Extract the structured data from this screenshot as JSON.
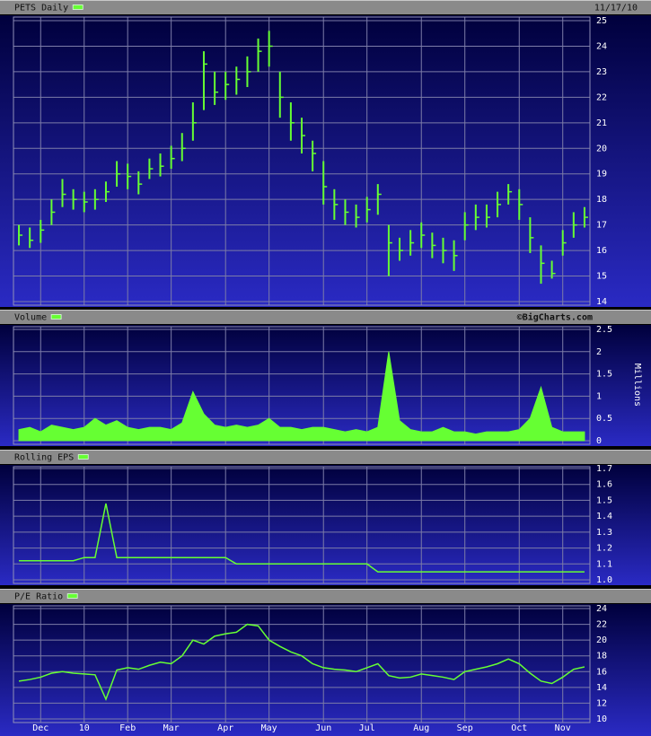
{
  "chart_data": [
    {
      "type": "ohlc",
      "title": "PETS Daily",
      "date": "11/17/10",
      "color": "#66ff33",
      "high": [
        17.0,
        16.9,
        17.2,
        18.0,
        18.8,
        18.4,
        18.3,
        18.4,
        18.7,
        19.5,
        19.4,
        19.1,
        19.6,
        19.8,
        20.1,
        20.6,
        21.8,
        23.8,
        23.0,
        23.0,
        23.2,
        23.6,
        24.3,
        24.6,
        23.0,
        21.8,
        21.2,
        20.3,
        19.5,
        18.4,
        18.0,
        17.8,
        18.1,
        18.6,
        17.0,
        16.5,
        16.8,
        17.1,
        16.7,
        16.5,
        16.4,
        17.5,
        17.8,
        17.8,
        18.3,
        18.6,
        18.4,
        17.3,
        16.2,
        15.6,
        16.8,
        17.5,
        17.7
      ],
      "low": [
        16.2,
        16.1,
        16.3,
        17.0,
        17.7,
        17.6,
        17.5,
        17.6,
        17.9,
        18.5,
        18.4,
        18.2,
        18.8,
        18.9,
        19.2,
        19.5,
        20.3,
        21.5,
        21.7,
        21.9,
        22.1,
        22.4,
        23.0,
        23.2,
        21.2,
        20.3,
        19.8,
        19.1,
        17.8,
        17.2,
        17.0,
        16.9,
        17.1,
        17.4,
        15.0,
        15.6,
        15.8,
        16.1,
        15.7,
        15.5,
        15.2,
        16.4,
        16.8,
        16.9,
        17.3,
        17.8,
        17.2,
        15.9,
        14.7,
        14.9,
        15.8,
        16.5,
        16.9
      ],
      "close": [
        16.6,
        16.4,
        16.8,
        17.5,
        18.2,
        18.0,
        17.9,
        18.0,
        18.3,
        19.0,
        18.9,
        18.6,
        19.2,
        19.3,
        19.6,
        20.0,
        21.0,
        23.3,
        22.2,
        22.5,
        22.7,
        23.0,
        23.8,
        24.0,
        22.0,
        21.0,
        20.5,
        19.8,
        18.5,
        17.8,
        17.5,
        17.3,
        17.6,
        18.2,
        16.3,
        16.0,
        16.3,
        16.6,
        16.2,
        16.0,
        15.8,
        17.0,
        17.3,
        17.3,
        17.8,
        18.3,
        17.8,
        16.5,
        15.5,
        15.1,
        16.3,
        17.0,
        17.3
      ],
      "ylim": [
        14,
        25
      ],
      "yticks": [
        14,
        15,
        16,
        17,
        18,
        19,
        20,
        21,
        22,
        23,
        24,
        25
      ],
      "grid": true
    },
    {
      "type": "area",
      "title": "Volume",
      "credit": "©BigCharts.com",
      "ylabel": "Millions",
      "color": "#66ff33",
      "values": [
        0.25,
        0.3,
        0.2,
        0.35,
        0.3,
        0.25,
        0.3,
        0.5,
        0.35,
        0.45,
        0.3,
        0.25,
        0.3,
        0.3,
        0.25,
        0.4,
        1.1,
        0.6,
        0.35,
        0.3,
        0.35,
        0.3,
        0.35,
        0.5,
        0.3,
        0.3,
        0.25,
        0.3,
        0.3,
        0.25,
        0.2,
        0.25,
        0.2,
        0.3,
        2.0,
        0.45,
        0.25,
        0.2,
        0.2,
        0.3,
        0.2,
        0.2,
        0.15,
        0.2,
        0.2,
        0.2,
        0.25,
        0.5,
        1.2,
        0.3,
        0.2,
        0.2,
        0.2
      ],
      "ylim": [
        0,
        2.5
      ],
      "yticks": [
        0,
        0.5,
        1,
        1.5,
        2,
        2.5
      ],
      "grid": true
    },
    {
      "type": "line",
      "title": "Rolling EPS",
      "color": "#66ff33",
      "values": [
        1.12,
        1.12,
        1.12,
        1.12,
        1.12,
        1.12,
        1.14,
        1.14,
        1.48,
        1.14,
        1.14,
        1.14,
        1.14,
        1.14,
        1.14,
        1.14,
        1.14,
        1.14,
        1.14,
        1.14,
        1.1,
        1.1,
        1.1,
        1.1,
        1.1,
        1.1,
        1.1,
        1.1,
        1.1,
        1.1,
        1.1,
        1.1,
        1.1,
        1.05,
        1.05,
        1.05,
        1.05,
        1.05,
        1.05,
        1.05,
        1.05,
        1.05,
        1.05,
        1.05,
        1.05,
        1.05,
        1.05,
        1.05,
        1.05,
        1.05,
        1.05,
        1.05,
        1.05
      ],
      "ylim": [
        1.0,
        1.7
      ],
      "yticks": [
        {
          "value": 1,
          "label": "1.0"
        },
        1.1,
        1.2,
        1.3,
        1.4,
        1.5,
        1.6,
        1.7
      ],
      "grid": true
    },
    {
      "type": "line",
      "title": "P/E Ratio",
      "color": "#66ff33",
      "categories": [
        null,
        null,
        "Dec",
        null,
        null,
        null,
        "10",
        null,
        null,
        null,
        "Feb",
        null,
        null,
        null,
        "Mar",
        null,
        null,
        null,
        null,
        "Apr",
        null,
        null,
        null,
        "May",
        null,
        null,
        null,
        null,
        "Jun",
        null,
        null,
        null,
        "Jul",
        null,
        null,
        null,
        null,
        "Aug",
        null,
        null,
        null,
        "Sep",
        null,
        null,
        null,
        null,
        "Oct",
        null,
        null,
        null,
        "Nov",
        null,
        null
      ],
      "values": [
        14.8,
        15.0,
        15.3,
        15.8,
        16.0,
        15.8,
        15.7,
        15.6,
        12.5,
        16.2,
        16.5,
        16.3,
        16.8,
        17.2,
        17.0,
        18.0,
        20.0,
        19.5,
        20.5,
        20.8,
        21.0,
        22.0,
        21.8,
        20.0,
        19.2,
        18.5,
        18.0,
        17.0,
        16.5,
        16.3,
        16.2,
        16.0,
        16.5,
        17.0,
        15.5,
        15.2,
        15.3,
        15.7,
        15.5,
        15.3,
        15.0,
        16.0,
        16.3,
        16.6,
        17.0,
        17.6,
        17.0,
        15.8,
        14.8,
        14.5,
        15.3,
        16.3,
        16.6
      ],
      "ylim": [
        10,
        24
      ],
      "yticks": [
        10,
        12,
        14,
        16,
        18,
        20,
        22,
        24
      ],
      "grid": true
    }
  ]
}
